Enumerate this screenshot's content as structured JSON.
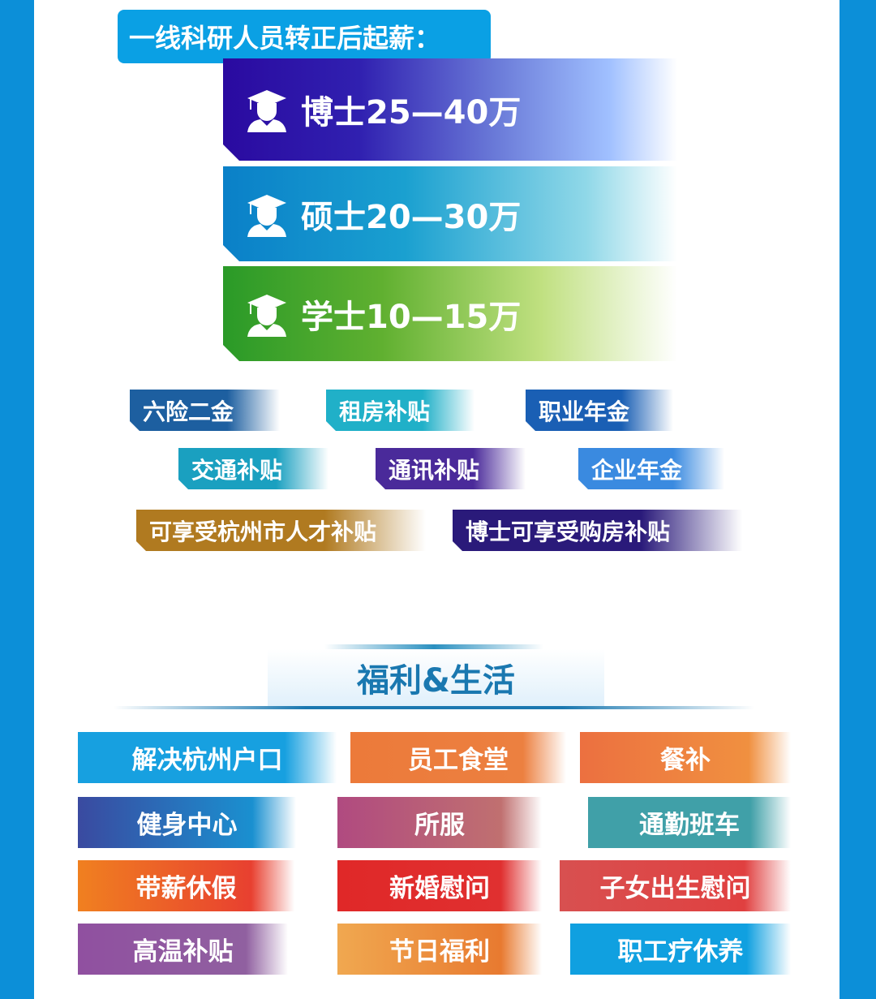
{
  "salary": {
    "heading": "一线科研人员转正后起薪：",
    "levels": [
      {
        "label": "博士25—40万",
        "icon": "graduate-icon"
      },
      {
        "label": "硕士20—30万",
        "icon": "graduate-icon"
      },
      {
        "label": "学士10—15万",
        "icon": "graduate-icon"
      }
    ]
  },
  "benefit_tags": [
    "六险二金",
    "租房补贴",
    "职业年金",
    "交通补贴",
    "通讯补贴",
    "企业年金",
    "可享受杭州市人才补贴",
    "博士可享受购房补贴"
  ],
  "welfare": {
    "title": "福利&生活",
    "items": [
      "解决杭州户口",
      "员工食堂",
      "餐补",
      "健身中心",
      "所服",
      "通勤班车",
      "带薪休假",
      "新婚慰问",
      "子女出生慰问",
      "高温补贴",
      "节日福利",
      "职工疗休养"
    ]
  },
  "colors": {
    "side": "#0c8fd8",
    "phd": "#2a0aa0",
    "master": "#0a8ad0",
    "bachelor": "#2a9a28"
  }
}
